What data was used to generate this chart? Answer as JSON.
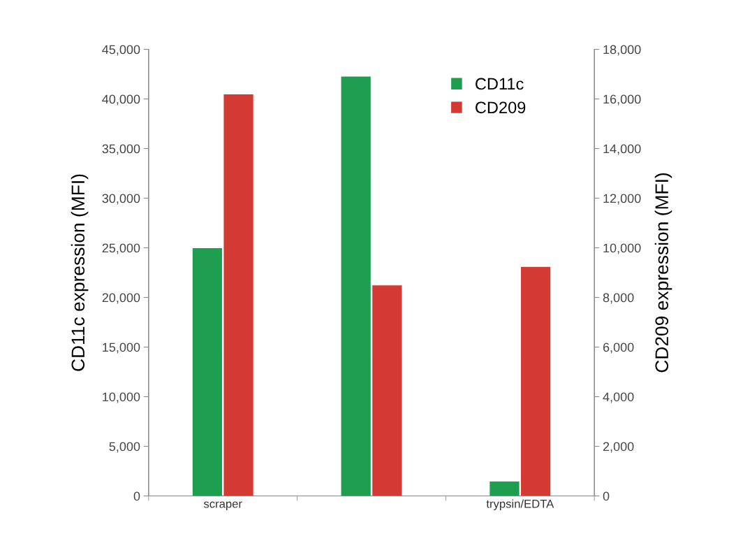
{
  "chart_data": {
    "type": "bar",
    "ylabel": "CD11c expression (MFI)",
    "y2label": "CD209 expression (MFI)",
    "categories": [
      "scraper",
      null,
      "trypsin/EDTA"
    ],
    "series": [
      {
        "name": "CD11c",
        "color": "#1f9e4f",
        "values": [
          25000,
          42300,
          1500
        ]
      },
      {
        "name": "CD209",
        "color": "#d23a33",
        "values": [
          16200,
          8500,
          9250
        ],
        "axis": "y2"
      }
    ],
    "ylim": [
      0,
      45000
    ],
    "yticks": [
      {
        "value": 0,
        "label": "0"
      },
      {
        "value": 5000,
        "label": "5,000"
      },
      {
        "value": 10000,
        "label": "10,000"
      },
      {
        "value": 15000,
        "label": "15,000"
      },
      {
        "value": 20000,
        "label": "20,000"
      },
      {
        "value": 25000,
        "label": "25,000"
      },
      {
        "value": 30000,
        "label": "30,000"
      },
      {
        "value": 35000,
        "label": "35,000"
      },
      {
        "value": 40000,
        "label": "40,000"
      },
      {
        "value": 45000,
        "label": "45,000"
      }
    ],
    "y2lim": [
      0,
      18000
    ],
    "y2ticks": [
      {
        "value": 0,
        "label": "0"
      },
      {
        "value": 2000,
        "label": "2,000"
      },
      {
        "value": 4000,
        "label": "4,000"
      },
      {
        "value": 6000,
        "label": "6,000"
      },
      {
        "value": 8000,
        "label": "8,000"
      },
      {
        "value": 10000,
        "label": "10,000"
      },
      {
        "value": 12000,
        "label": "12,000"
      },
      {
        "value": 14000,
        "label": "14,000"
      },
      {
        "value": 16000,
        "label": "16,000"
      },
      {
        "value": 18000,
        "label": "18,000"
      }
    ],
    "legend": "top right",
    "grid": false
  }
}
